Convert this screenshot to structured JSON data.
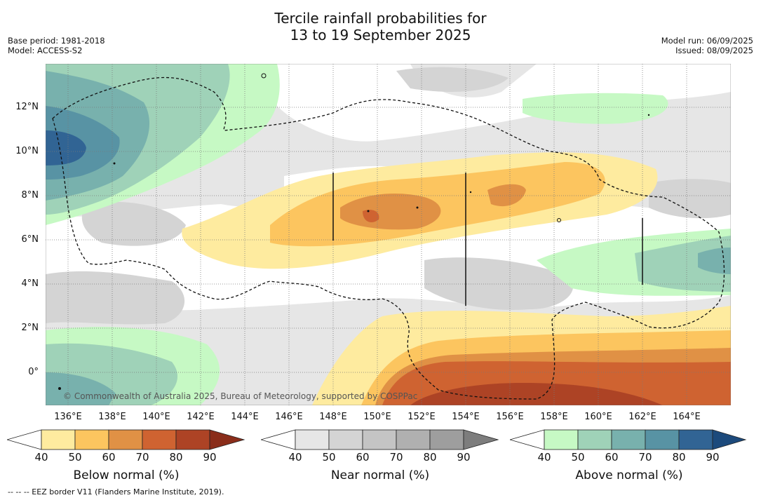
{
  "title_line1": "Tercile rainfall probabilities for",
  "title_line2": "13 to 19 September 2025",
  "base_period": "Base period: 1981-2018",
  "model": "Model: ACCESS-S2",
  "model_run": "Model run: 06/09/2025",
  "issued": "Issued: 08/09/2025",
  "copyright": "© Commonwealth of Australia 2025, Bureau of Meteorology, supported by COSPPac",
  "footnote": "--  --  -- EEZ border V11 (Flanders Marine Institute, 2019).",
  "x_ticks": [
    "136°E",
    "138°E",
    "140°E",
    "142°E",
    "144°E",
    "146°E",
    "148°E",
    "150°E",
    "152°E",
    "154°E",
    "156°E",
    "158°E",
    "160°E",
    "162°E",
    "164°E"
  ],
  "y_ticks": [
    "12°N",
    "10°N",
    "8°N",
    "6°N",
    "4°N",
    "2°N",
    "0°"
  ],
  "colorbars": [
    {
      "label": "Below normal (%)",
      "ticks": [
        "40",
        "50",
        "60",
        "70",
        "80",
        "90"
      ],
      "colors": [
        "#ffffff",
        "#feeb9f",
        "#fcc55f",
        "#e09145",
        "#cf6331",
        "#ad4325",
        "#8a2d1a"
      ]
    },
    {
      "label": "Near normal (%)",
      "ticks": [
        "40",
        "50",
        "60",
        "70",
        "80",
        "90"
      ],
      "colors": [
        "#ffffff",
        "#e6e6e6",
        "#d4d4d4",
        "#c4c4c4",
        "#b0b0b0",
        "#9e9e9e",
        "#7d7d7d"
      ]
    },
    {
      "label": "Above normal (%)",
      "ticks": [
        "40",
        "50",
        "60",
        "70",
        "80",
        "90"
      ],
      "colors": [
        "#ffffff",
        "#c6f9c4",
        "#9fd2b8",
        "#78b1ad",
        "#5893a4",
        "#316494",
        "#1c4a7c"
      ]
    }
  ]
}
